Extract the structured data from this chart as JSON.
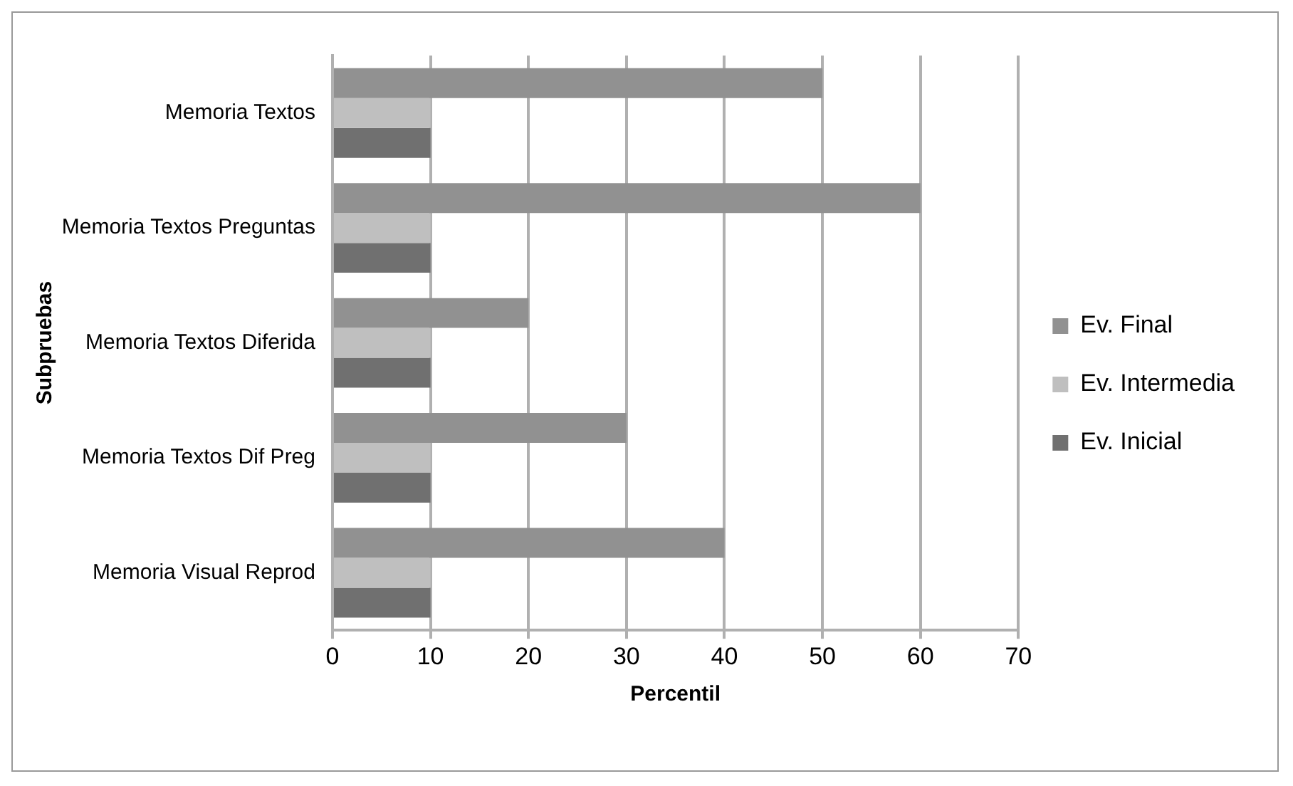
{
  "chart_data": {
    "type": "bar",
    "orientation": "horizontal",
    "xlabel": "Percentil",
    "ylabel": "Subpruebas",
    "categories": [
      "Memoria Textos",
      "Memoria Textos Preguntas",
      "Memoria Textos Diferida",
      "Memoria Textos Dif Preg",
      "Memoria Visual Reprod"
    ],
    "series": [
      {
        "name": "Ev. Final",
        "color": "#919191",
        "values": [
          50,
          60,
          20,
          30,
          40
        ]
      },
      {
        "name": "Ev. Intermedia",
        "color": "#bfbfbf",
        "values": [
          10,
          10,
          10,
          10,
          10
        ]
      },
      {
        "name": "Ev. Inicial",
        "color": "#707070",
        "values": [
          10,
          10,
          10,
          10,
          10
        ]
      }
    ],
    "xlim": [
      0,
      70
    ],
    "xticks": [
      0,
      10,
      20,
      30,
      40,
      50,
      60,
      70
    ],
    "grid": "x",
    "legend": "right"
  }
}
